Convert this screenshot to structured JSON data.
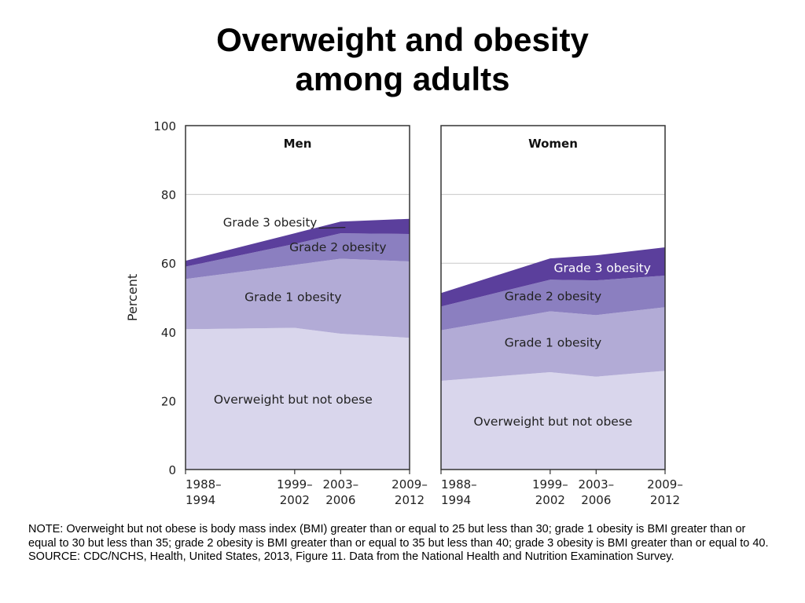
{
  "page": {
    "title_line1": "Overweight and obesity",
    "title_line2": "among adults",
    "note": "NOTE: Overweight but not obese is body mass index (BMI) greater than or equal to 25 but less than 30; grade 1 obesity is BMI greater than or equal to 30 but less than 35; grade 2 obesity is BMI greater than or equal to 35 but less than 40; grade 3 obesity is BMI greater than or equal to 40.",
    "source": "SOURCE: CDC/NCHS, Health, United States, 2013, Figure 11. Data from the National Health and Nutrition Examination Survey."
  },
  "chart_data": [
    {
      "type": "area",
      "stacked": true,
      "title": "Men",
      "ylabel": "Percent",
      "ylim": [
        0,
        100
      ],
      "yticks": [
        0,
        20,
        40,
        60,
        80,
        100
      ],
      "x": [
        "1988–1994",
        "1999–2002",
        "2003–2006",
        "2009–2012"
      ],
      "x_position_years": [
        1991,
        2000.5,
        2004.5,
        2010.5
      ],
      "gridlines": [
        80,
        60
      ],
      "series": [
        {
          "name": "Overweight but not obese",
          "values": [
            40.8,
            41.2,
            39.5,
            38.3
          ],
          "color": "#d9d6ec"
        },
        {
          "name": "Grade 1 obesity",
          "values": [
            14.6,
            18.3,
            21.8,
            22.2
          ],
          "color": "#b2abd6"
        },
        {
          "name": "Grade 2 obesity",
          "values": [
            3.6,
            6.1,
            7.4,
            8.0
          ],
          "color": "#8b7fc0"
        },
        {
          "name": "Grade 3 obesity",
          "values": [
            1.7,
            3.1,
            3.4,
            4.4
          ],
          "color": "#5b3f9c"
        }
      ]
    },
    {
      "type": "area",
      "stacked": true,
      "title": "Women",
      "ylabel": "Percent",
      "ylim": [
        0,
        100
      ],
      "yticks": [
        0,
        20,
        40,
        60,
        80,
        100
      ],
      "x": [
        "1988–1994",
        "1999–2002",
        "2003–2006",
        "2009–2012"
      ],
      "x_position_years": [
        1991,
        2000.5,
        2004.5,
        2010.5
      ],
      "gridlines": [
        80,
        60
      ],
      "series": [
        {
          "name": "Overweight but not obese",
          "values": [
            25.8,
            28.3,
            27.0,
            28.7
          ],
          "color": "#d9d6ec"
        },
        {
          "name": "Grade 1 obesity",
          "values": [
            14.7,
            17.7,
            17.9,
            18.5
          ],
          "color": "#b2abd6"
        },
        {
          "name": "Grade 2 obesity",
          "values": [
            6.9,
            9.2,
            10.1,
            9.2
          ],
          "color": "#8b7fc0"
        },
        {
          "name": "Grade 3 obesity",
          "values": [
            3.9,
            6.2,
            7.3,
            8.2
          ],
          "color": "#5b3f9c"
        }
      ]
    }
  ]
}
